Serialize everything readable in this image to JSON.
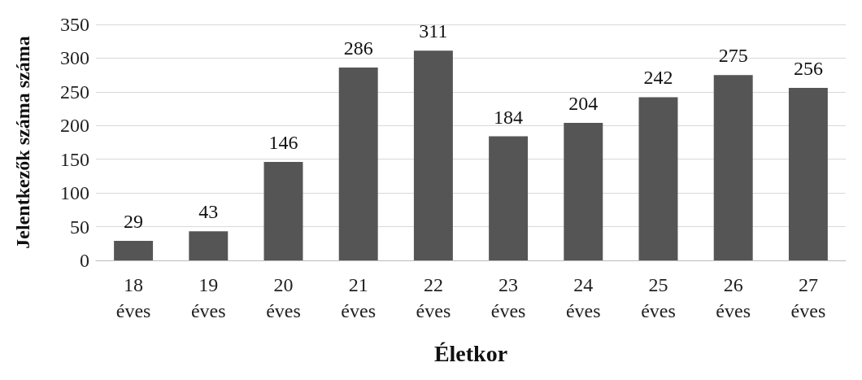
{
  "chart_data": {
    "type": "bar",
    "xlabel": "Életkor",
    "ylabel": "Jelentkezők száma száma",
    "categories": [
      "18 éves",
      "19 éves",
      "20 éves",
      "21 éves",
      "22 éves",
      "23 éves",
      "24 éves",
      "25 éves",
      "26 éves",
      "27 éves"
    ],
    "values": [
      29,
      43,
      146,
      286,
      311,
      184,
      204,
      242,
      275,
      256
    ],
    "color": "#555555",
    "ylim": [
      0,
      350
    ],
    "yticks": [
      0,
      50,
      100,
      150,
      200,
      250,
      300,
      350
    ],
    "grid": "y",
    "data_labels": true
  }
}
